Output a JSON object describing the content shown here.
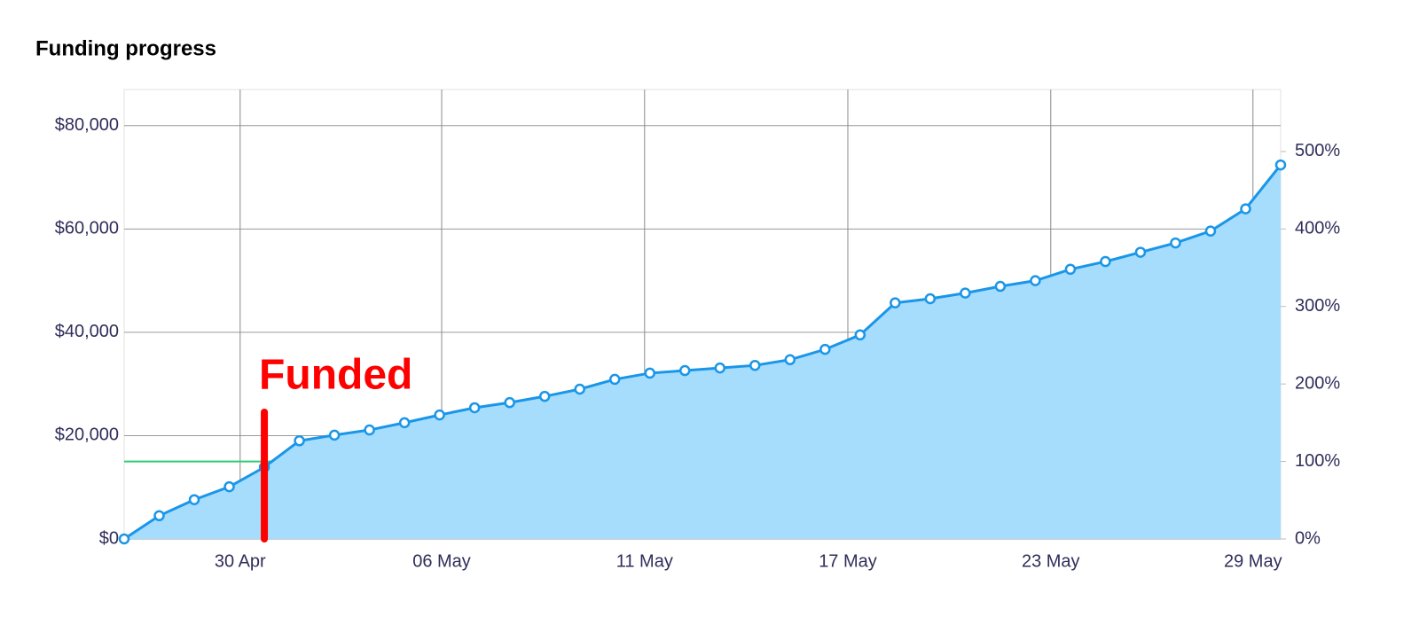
{
  "chart_data": {
    "type": "area",
    "title": "Funding progress",
    "x": [
      0,
      1,
      2,
      3,
      4,
      5,
      6,
      7,
      8,
      9,
      10,
      11,
      12,
      13,
      14,
      15,
      16,
      17,
      18,
      19,
      20,
      21,
      22,
      23,
      24,
      25,
      26,
      27,
      28,
      29,
      30,
      31,
      32,
      33
    ],
    "series": [
      {
        "name": "Funding",
        "color": "#1a96e8",
        "fill": "#a6dcfc",
        "values": [
          0,
          4500,
          7600,
          10100,
          13900,
          19000,
          20100,
          21100,
          22500,
          24000,
          25400,
          26400,
          27600,
          29000,
          30900,
          32100,
          32600,
          33100,
          33600,
          34700,
          36700,
          39500,
          45700,
          46500,
          47600,
          48900,
          50000,
          52200,
          53700,
          55500,
          57300,
          59600,
          63900,
          72400
        ]
      }
    ],
    "xlim": [
      0,
      33
    ],
    "xticks": [
      {
        "value": 3.31,
        "label": "30 Apr"
      },
      {
        "value": 9.06,
        "label": "06 May"
      },
      {
        "value": 14.85,
        "label": "11 May"
      },
      {
        "value": 20.65,
        "label": "17 May"
      },
      {
        "value": 26.44,
        "label": "23 May"
      },
      {
        "value": 32.21,
        "label": "29 May"
      }
    ],
    "ylim": [
      0,
      87000
    ],
    "yticks": [
      {
        "value": 0,
        "label": "$0"
      },
      {
        "value": 20000,
        "label": "$20,000"
      },
      {
        "value": 40000,
        "label": "$40,000"
      },
      {
        "value": 60000,
        "label": "$60,000"
      },
      {
        "value": 80000,
        "label": "$80,000"
      }
    ],
    "y2lim": [
      0,
      580
    ],
    "y2ticks": [
      {
        "value": 0,
        "label": "0%"
      },
      {
        "value": 100,
        "label": "100%"
      },
      {
        "value": 200,
        "label": "200%"
      },
      {
        "value": 300,
        "label": "300%"
      },
      {
        "value": 400,
        "label": "400%"
      },
      {
        "value": 500,
        "label": "500%"
      }
    ],
    "goal": 15000,
    "goal_color": "#2ecc71",
    "grid": true,
    "annotation": {
      "text": "Funded",
      "x": 4,
      "color": "#ff0000"
    }
  }
}
